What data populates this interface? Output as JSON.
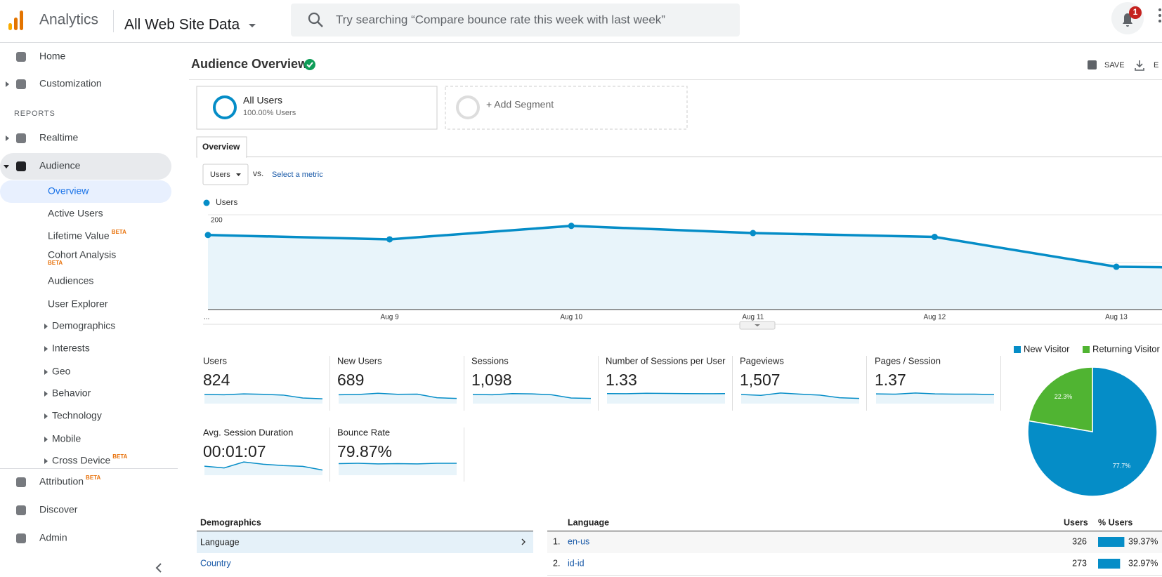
{
  "header": {
    "product": "Analytics",
    "property": "All Web Site Data",
    "search_placeholder": "Try searching “Compare bounce rate this week with last week”",
    "notifications": "1"
  },
  "sidebar": {
    "items": [
      {
        "label": "Home",
        "level": 0
      },
      {
        "label": "Customization",
        "level": 0
      },
      {
        "label": "REPORTS",
        "level": "heading"
      },
      {
        "label": "Realtime",
        "level": 0
      },
      {
        "label": "Audience",
        "level": 0
      },
      {
        "label": "Overview",
        "level": 1
      },
      {
        "label": "Active Users",
        "level": 1
      },
      {
        "label": "Lifetime Value",
        "level": 1,
        "beta": "BETA"
      },
      {
        "label": "Cohort Analysis",
        "level": 1,
        "beta": "BETA"
      },
      {
        "label": "Audiences",
        "level": 1
      },
      {
        "label": "User Explorer",
        "level": 1
      },
      {
        "label": "Demographics",
        "level": 2
      },
      {
        "label": "Interests",
        "level": 2
      },
      {
        "label": "Geo",
        "level": 2
      },
      {
        "label": "Behavior",
        "level": 2
      },
      {
        "label": "Technology",
        "level": 2
      },
      {
        "label": "Mobile",
        "level": 2
      },
      {
        "label": "Cross Device",
        "level": 2,
        "beta": "BETA"
      },
      {
        "label": "Attribution",
        "level": 0,
        "beta": "BETA"
      },
      {
        "label": "Discover",
        "level": 0
      },
      {
        "label": "Admin",
        "level": 0
      }
    ]
  },
  "page": {
    "title": "Audience Overview",
    "actions": [
      "SAVE",
      "E"
    ],
    "segments": [
      {
        "name": "All Users",
        "detail": "100.00% Users"
      }
    ],
    "add_segment": "+ Add Segment",
    "tab": "Overview",
    "metric_selector": "Users",
    "vs": "vs.",
    "select_metric": "Select a metric"
  },
  "chart_data": [
    {
      "type": "line",
      "categories": [
        "...",
        "Aug 9",
        "Aug 10",
        "Aug 11",
        "Aug 12",
        "Aug 13",
        null
      ],
      "series": [
        {
          "name": "Users",
          "color": "#058dc7",
          "values": [
            158,
            149,
            177,
            162,
            154,
            92,
            88
          ]
        }
      ],
      "ylim": [
        3,
        200
      ],
      "yticks": [
        100,
        200
      ],
      "grid": true
    },
    {
      "type": "pie",
      "categories": [
        "New Visitor",
        "Returning Visitor"
      ],
      "values": [
        77.7,
        22.3
      ],
      "value_labels": [
        "77.7%",
        "22.3%"
      ],
      "colors": [
        "#058dc7",
        "#50b432"
      ]
    }
  ],
  "metrics": [
    {
      "label": "Users",
      "value": "824",
      "spark": [
        62,
        60,
        66,
        63,
        58,
        38,
        33
      ]
    },
    {
      "label": "New Users",
      "value": "689",
      "spark": [
        60,
        62,
        70,
        63,
        64,
        40,
        35
      ]
    },
    {
      "label": "Sessions",
      "value": "1,098",
      "spark": [
        62,
        60,
        68,
        66,
        60,
        38,
        35
      ]
    },
    {
      "label": "Number of Sessions per User",
      "value": "1.33",
      "spark": [
        68,
        67,
        70,
        69,
        68,
        67,
        68
      ]
    },
    {
      "label": "Pageviews",
      "value": "1,507",
      "spark": [
        62,
        56,
        72,
        64,
        58,
        40,
        35
      ]
    },
    {
      "label": "Pages / Session",
      "value": "1.37",
      "spark": [
        66,
        64,
        72,
        66,
        64,
        64,
        62
      ]
    },
    {
      "label": "Avg. Session Duration",
      "value": "00:01:07",
      "spark": [
        56,
        45,
        82,
        68,
        60,
        55,
        32
      ]
    },
    {
      "label": "Bounce Rate",
      "value": "79.87%",
      "spark": [
        72,
        74,
        70,
        72,
        70,
        74,
        74
      ]
    }
  ],
  "demographics": {
    "title": "Demographics",
    "items": [
      "Language",
      "Country"
    ]
  },
  "table": {
    "headers": [
      "Language",
      "Users",
      "% Users"
    ],
    "rows": [
      {
        "rank": "1.",
        "name": "en-us",
        "users": 326,
        "pct": 39.37,
        "pct_label": "39.37%"
      },
      {
        "rank": "2.",
        "name": "id-id",
        "users": 273,
        "pct": 32.97,
        "pct_label": "32.97%"
      }
    ]
  }
}
